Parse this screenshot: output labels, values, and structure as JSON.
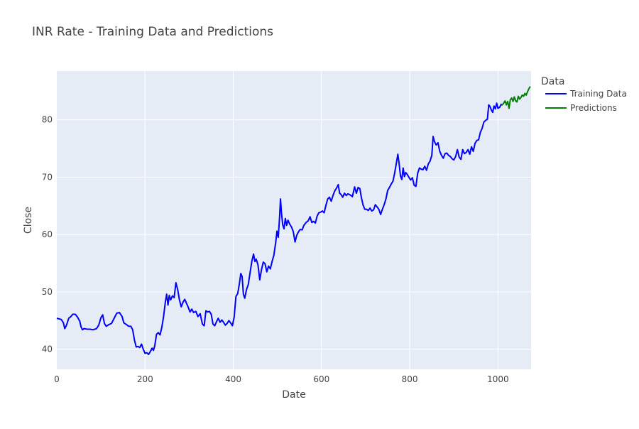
{
  "chart_data": {
    "type": "line",
    "title": "INR Rate - Training Data and Predictions",
    "xlabel": "Date",
    "ylabel": "Close",
    "xlim": [
      0,
      1075
    ],
    "ylim": [
      36.5,
      88.5
    ],
    "x_ticks": [
      0,
      200,
      400,
      600,
      800,
      1000
    ],
    "y_ticks": [
      40,
      50,
      60,
      70,
      80
    ],
    "grid": true,
    "plot_background": "#e5ecf6",
    "legend": {
      "title": "Data",
      "placement": "right"
    },
    "series": [
      {
        "name": "Training Data",
        "color": "#0000ff",
        "points": [
          [
            0,
            45.4
          ],
          [
            5,
            45.3
          ],
          [
            10,
            45.2
          ],
          [
            15,
            44.6
          ],
          [
            18,
            43.6
          ],
          [
            22,
            44.2
          ],
          [
            27,
            45.4
          ],
          [
            32,
            45.7
          ],
          [
            36,
            46.1
          ],
          [
            42,
            46.1
          ],
          [
            47,
            45.6
          ],
          [
            52,
            44.9
          ],
          [
            55,
            43.9
          ],
          [
            58,
            43.4
          ],
          [
            62,
            43.6
          ],
          [
            68,
            43.5
          ],
          [
            75,
            43.5
          ],
          [
            82,
            43.4
          ],
          [
            90,
            43.6
          ],
          [
            95,
            44.2
          ],
          [
            100,
            45.5
          ],
          [
            104,
            46.0
          ],
          [
            108,
            44.5
          ],
          [
            112,
            44.0
          ],
          [
            118,
            44.3
          ],
          [
            124,
            44.5
          ],
          [
            130,
            45.4
          ],
          [
            136,
            46.3
          ],
          [
            142,
            46.4
          ],
          [
            148,
            45.7
          ],
          [
            152,
            44.6
          ],
          [
            158,
            44.3
          ],
          [
            163,
            44.0
          ],
          [
            168,
            44.0
          ],
          [
            172,
            43.4
          ],
          [
            176,
            41.6
          ],
          [
            180,
            40.4
          ],
          [
            184,
            40.5
          ],
          [
            188,
            40.3
          ],
          [
            192,
            40.9
          ],
          [
            196,
            40.0
          ],
          [
            200,
            39.3
          ],
          [
            204,
            39.4
          ],
          [
            208,
            39.1
          ],
          [
            212,
            39.6
          ],
          [
            216,
            40.2
          ],
          [
            219,
            39.8
          ],
          [
            222,
            40.6
          ],
          [
            226,
            42.6
          ],
          [
            230,
            42.9
          ],
          [
            234,
            42.5
          ],
          [
            238,
            43.8
          ],
          [
            242,
            45.7
          ],
          [
            246,
            48.2
          ],
          [
            249,
            49.6
          ],
          [
            252,
            47.7
          ],
          [
            255,
            49.4
          ],
          [
            258,
            48.6
          ],
          [
            262,
            49.3
          ],
          [
            266,
            49.0
          ],
          [
            270,
            51.6
          ],
          [
            274,
            50.4
          ],
          [
            278,
            48.6
          ],
          [
            282,
            47.4
          ],
          [
            286,
            48.2
          ],
          [
            290,
            48.7
          ],
          [
            294,
            48.0
          ],
          [
            298,
            47.3
          ],
          [
            302,
            46.5
          ],
          [
            306,
            47.0
          ],
          [
            310,
            46.4
          ],
          [
            315,
            46.6
          ],
          [
            320,
            45.7
          ],
          [
            325,
            46.2
          ],
          [
            330,
            44.4
          ],
          [
            334,
            44.1
          ],
          [
            338,
            46.7
          ],
          [
            342,
            46.5
          ],
          [
            346,
            46.6
          ],
          [
            350,
            46.1
          ],
          [
            354,
            44.4
          ],
          [
            358,
            44.1
          ],
          [
            362,
            44.8
          ],
          [
            366,
            45.4
          ],
          [
            370,
            44.7
          ],
          [
            374,
            45.1
          ],
          [
            378,
            44.7
          ],
          [
            382,
            44.2
          ],
          [
            386,
            44.5
          ],
          [
            390,
            45.0
          ],
          [
            394,
            44.6
          ],
          [
            398,
            44.1
          ],
          [
            402,
            45.6
          ],
          [
            406,
            49.2
          ],
          [
            410,
            49.7
          ],
          [
            414,
            51.5
          ],
          [
            417,
            53.2
          ],
          [
            420,
            52.7
          ],
          [
            423,
            49.6
          ],
          [
            426,
            48.9
          ],
          [
            430,
            50.4
          ],
          [
            434,
            51.3
          ],
          [
            438,
            53.3
          ],
          [
            442,
            55.3
          ],
          [
            446,
            56.6
          ],
          [
            449,
            55.3
          ],
          [
            452,
            55.7
          ],
          [
            456,
            54.7
          ],
          [
            460,
            52.1
          ],
          [
            464,
            53.9
          ],
          [
            468,
            55.2
          ],
          [
            472,
            54.9
          ],
          [
            476,
            53.5
          ],
          [
            480,
            54.5
          ],
          [
            484,
            54.0
          ],
          [
            488,
            55.3
          ],
          [
            492,
            56.4
          ],
          [
            496,
            58.5
          ],
          [
            499,
            60.6
          ],
          [
            502,
            59.5
          ],
          [
            505,
            63.1
          ],
          [
            507,
            66.2
          ],
          [
            509,
            64.0
          ],
          [
            512,
            61.7
          ],
          [
            515,
            61.0
          ],
          [
            518,
            62.8
          ],
          [
            521,
            61.6
          ],
          [
            524,
            62.5
          ],
          [
            528,
            61.8
          ],
          [
            532,
            61.3
          ],
          [
            536,
            60.5
          ],
          [
            540,
            58.7
          ],
          [
            544,
            59.9
          ],
          [
            548,
            60.5
          ],
          [
            552,
            60.9
          ],
          [
            556,
            60.8
          ],
          [
            560,
            61.6
          ],
          [
            565,
            62.1
          ],
          [
            570,
            62.4
          ],
          [
            574,
            63.1
          ],
          [
            578,
            62.1
          ],
          [
            582,
            62.3
          ],
          [
            586,
            62.0
          ],
          [
            590,
            63.2
          ],
          [
            594,
            63.8
          ],
          [
            598,
            63.9
          ],
          [
            602,
            64.1
          ],
          [
            606,
            63.8
          ],
          [
            610,
            65.1
          ],
          [
            614,
            66.2
          ],
          [
            618,
            66.5
          ],
          [
            622,
            65.8
          ],
          [
            626,
            66.8
          ],
          [
            630,
            67.6
          ],
          [
            634,
            68.1
          ],
          [
            638,
            68.7
          ],
          [
            641,
            67.2
          ],
          [
            644,
            67.0
          ],
          [
            648,
            66.5
          ],
          [
            652,
            67.2
          ],
          [
            656,
            66.8
          ],
          [
            660,
            67.1
          ],
          [
            665,
            66.9
          ],
          [
            670,
            66.6
          ],
          [
            675,
            68.3
          ],
          [
            679,
            67.2
          ],
          [
            683,
            68.2
          ],
          [
            687,
            68.0
          ],
          [
            690,
            66.6
          ],
          [
            694,
            65.2
          ],
          [
            698,
            64.4
          ],
          [
            702,
            64.4
          ],
          [
            706,
            64.2
          ],
          [
            710,
            64.6
          ],
          [
            714,
            64.1
          ],
          [
            718,
            64.3
          ],
          [
            722,
            65.2
          ],
          [
            726,
            64.8
          ],
          [
            730,
            64.4
          ],
          [
            734,
            63.5
          ],
          [
            738,
            64.4
          ],
          [
            742,
            65.2
          ],
          [
            746,
            66.2
          ],
          [
            750,
            67.7
          ],
          [
            754,
            68.2
          ],
          [
            758,
            68.8
          ],
          [
            762,
            69.3
          ],
          [
            766,
            70.8
          ],
          [
            770,
            72.6
          ],
          [
            773,
            74.0
          ],
          [
            776,
            72.3
          ],
          [
            779,
            70.2
          ],
          [
            782,
            69.6
          ],
          [
            785,
            71.6
          ],
          [
            788,
            70.1
          ],
          [
            791,
            70.8
          ],
          [
            794,
            70.5
          ],
          [
            798,
            70.0
          ],
          [
            802,
            69.5
          ],
          [
            806,
            69.9
          ],
          [
            810,
            68.6
          ],
          [
            814,
            68.4
          ],
          [
            818,
            70.7
          ],
          [
            822,
            71.6
          ],
          [
            826,
            71.4
          ],
          [
            830,
            71.3
          ],
          [
            834,
            71.9
          ],
          [
            838,
            71.2
          ],
          [
            842,
            72.3
          ],
          [
            846,
            72.8
          ],
          [
            850,
            73.8
          ],
          [
            853,
            77.1
          ],
          [
            856,
            76.2
          ],
          [
            860,
            75.6
          ],
          [
            864,
            76.0
          ],
          [
            868,
            74.5
          ],
          [
            872,
            73.8
          ],
          [
            876,
            73.3
          ],
          [
            880,
            74.1
          ],
          [
            884,
            74.2
          ],
          [
            888,
            73.8
          ],
          [
            892,
            73.6
          ],
          [
            896,
            73.2
          ],
          [
            900,
            73.0
          ],
          [
            904,
            73.6
          ],
          [
            908,
            74.8
          ],
          [
            912,
            73.5
          ],
          [
            916,
            73.1
          ],
          [
            920,
            74.8
          ],
          [
            924,
            74.1
          ],
          [
            928,
            74.3
          ],
          [
            932,
            74.8
          ],
          [
            936,
            74.0
          ],
          [
            940,
            75.3
          ],
          [
            944,
            74.5
          ],
          [
            948,
            75.9
          ],
          [
            952,
            76.4
          ],
          [
            956,
            76.5
          ],
          [
            960,
            77.8
          ],
          [
            964,
            78.5
          ],
          [
            968,
            79.6
          ],
          [
            972,
            79.9
          ],
          [
            976,
            80.1
          ],
          [
            979,
            82.6
          ],
          [
            982,
            82.3
          ],
          [
            985,
            81.7
          ],
          [
            988,
            81.3
          ],
          [
            991,
            82.4
          ],
          [
            994,
            81.9
          ],
          [
            997,
            82.9
          ],
          [
            1000,
            82.0
          ],
          [
            1004,
            82.2
          ],
          [
            1008,
            82.8
          ]
        ]
      },
      {
        "name": "Predictions",
        "color": "#008000",
        "points": [
          [
            1008,
            82.5
          ],
          [
            1012,
            82.8
          ],
          [
            1016,
            83.3
          ],
          [
            1019,
            82.6
          ],
          [
            1022,
            83.2
          ],
          [
            1025,
            82.0
          ],
          [
            1028,
            83.5
          ],
          [
            1031,
            83.8
          ],
          [
            1034,
            83.2
          ],
          [
            1037,
            84.0
          ],
          [
            1040,
            83.3
          ],
          [
            1043,
            83.1
          ],
          [
            1046,
            84.1
          ],
          [
            1049,
            83.6
          ],
          [
            1052,
            83.9
          ],
          [
            1055,
            84.3
          ],
          [
            1058,
            84.1
          ],
          [
            1061,
            84.6
          ],
          [
            1064,
            84.3
          ],
          [
            1067,
            84.9
          ],
          [
            1070,
            85.4
          ],
          [
            1073,
            85.8
          ]
        ]
      }
    ]
  }
}
